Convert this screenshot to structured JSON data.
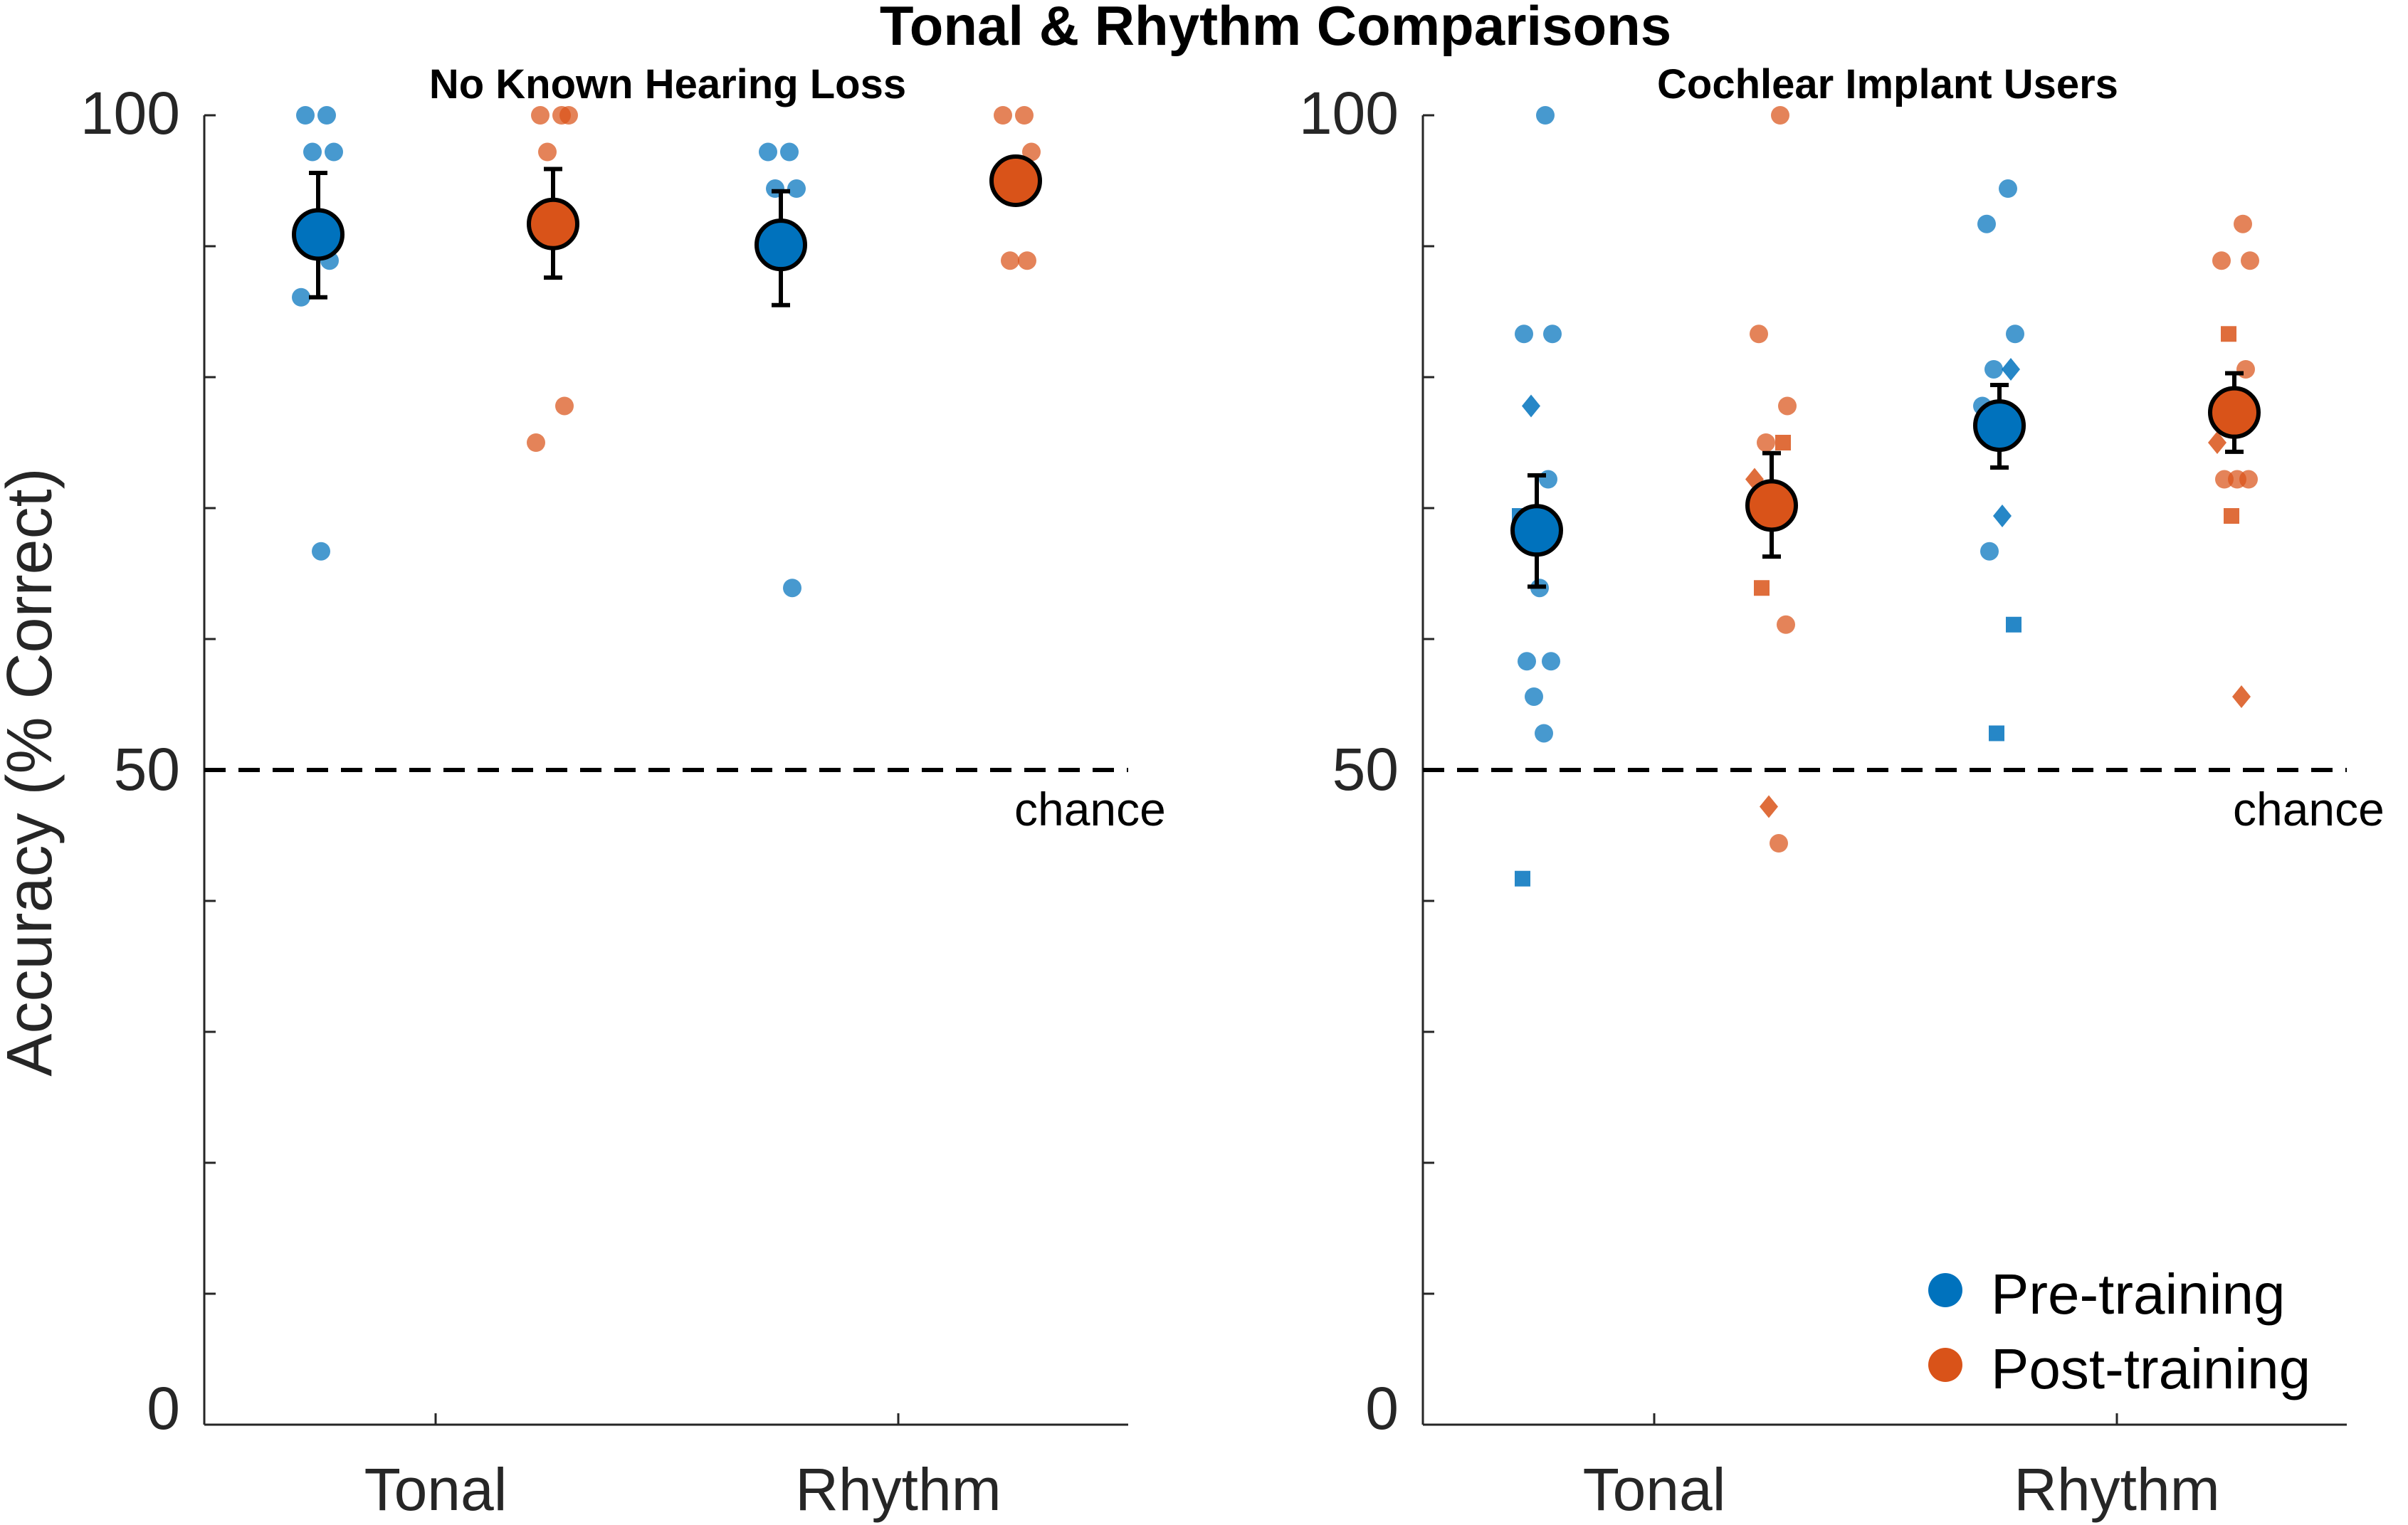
{
  "colors": {
    "pre": "#0072BD",
    "post": "#D95319",
    "axis": "#262626"
  },
  "figure": {
    "title": "Tonal & Rhythm Comparisons",
    "ylabel": "Accuracy (% Correct)"
  },
  "chart_data": [
    {
      "type": "scatter",
      "title": "No Known Hearing Loss",
      "categories": [
        "Tonal",
        "Rhythm"
      ],
      "ylim": [
        0,
        100
      ],
      "yticks": [
        "0",
        "50",
        "100"
      ],
      "chance": {
        "value": 50,
        "label": "chance"
      },
      "series": [
        {
          "name": "Pre-training",
          "category": "Tonal",
          "points": [
            100,
            100,
            97.2,
            97.2,
            88.9,
            86.1,
            66.7
          ],
          "markers": "circle",
          "mean": 90.9,
          "err_low": 86.1,
          "err_high": 95.6
        },
        {
          "name": "Post-training",
          "category": "Tonal",
          "points": [
            100,
            100,
            100,
            97.2,
            77.8,
            75.0
          ],
          "markers": "circle",
          "mean": 91.7,
          "err_low": 87.6,
          "err_high": 95.9
        },
        {
          "name": "Pre-training",
          "category": "Rhythm",
          "points": [
            97.2,
            97.2,
            94.4,
            94.4,
            63.9
          ],
          "markers": "circle",
          "mean": 90.1,
          "err_low": 85.5,
          "err_high": 94.2
        },
        {
          "name": "Post-training",
          "category": "Rhythm",
          "points": [
            100,
            100,
            97.2,
            88.9,
            88.9
          ],
          "markers": "circle",
          "mean": 95.0,
          "err_low": 95.0,
          "err_high": 95.0
        }
      ]
    },
    {
      "type": "scatter",
      "title": "Cochlear Implant Users",
      "categories": [
        "Tonal",
        "Rhythm"
      ],
      "ylim": [
        0,
        100
      ],
      "yticks": [
        "0",
        "50",
        "100"
      ],
      "chance": {
        "value": 50,
        "label": "chance"
      },
      "series": [
        {
          "name": "Pre-training",
          "category": "Tonal",
          "points": [
            100,
            83.3,
            83.3,
            77.8,
            72.2,
            69.4,
            63.9,
            58.3,
            58.3,
            55.6,
            52.8,
            41.7
          ],
          "markers": [
            "circle",
            "circle",
            "circle",
            "diamond",
            "circle",
            "square",
            "circle",
            "circle",
            "circle",
            "circle",
            "circle",
            "square"
          ],
          "mean": 68.3,
          "err_low": 64.0,
          "err_high": 72.5
        },
        {
          "name": "Post-training",
          "category": "Tonal",
          "points": [
            100,
            83.3,
            77.8,
            75.0,
            75.0,
            72.2,
            69.4,
            63.9,
            61.1,
            47.2,
            44.4
          ],
          "markers": [
            "circle",
            "circle",
            "circle",
            "circle",
            "square",
            "diamond",
            "circle",
            "square",
            "circle",
            "diamond",
            "circle"
          ],
          "mean": 70.2,
          "err_low": 66.3,
          "err_high": 74.2
        },
        {
          "name": "Pre-training",
          "category": "Rhythm",
          "points": [
            94.4,
            91.7,
            83.3,
            80.6,
            80.6,
            77.8,
            69.4,
            66.7,
            61.1,
            52.8
          ],
          "markers": [
            "circle",
            "circle",
            "circle",
            "circle",
            "diamond",
            "circle",
            "diamond",
            "circle",
            "square",
            "square"
          ],
          "mean": 76.3,
          "err_low": 73.1,
          "err_high": 79.4
        },
        {
          "name": "Post-training",
          "category": "Rhythm",
          "points": [
            91.7,
            88.9,
            88.9,
            83.3,
            80.6,
            75.0,
            72.2,
            72.2,
            72.2,
            69.4,
            55.6
          ],
          "markers": [
            "circle",
            "circle",
            "circle",
            "square",
            "circle",
            "diamond",
            "circle",
            "circle",
            "circle",
            "square",
            "diamond"
          ],
          "mean": 77.3,
          "err_low": 74.3,
          "err_high": 80.3
        }
      ]
    }
  ],
  "legend": {
    "position": "bottom-right",
    "items": [
      {
        "label": "Pre-training",
        "series": "pre"
      },
      {
        "label": "Post-training",
        "series": "post"
      }
    ]
  }
}
